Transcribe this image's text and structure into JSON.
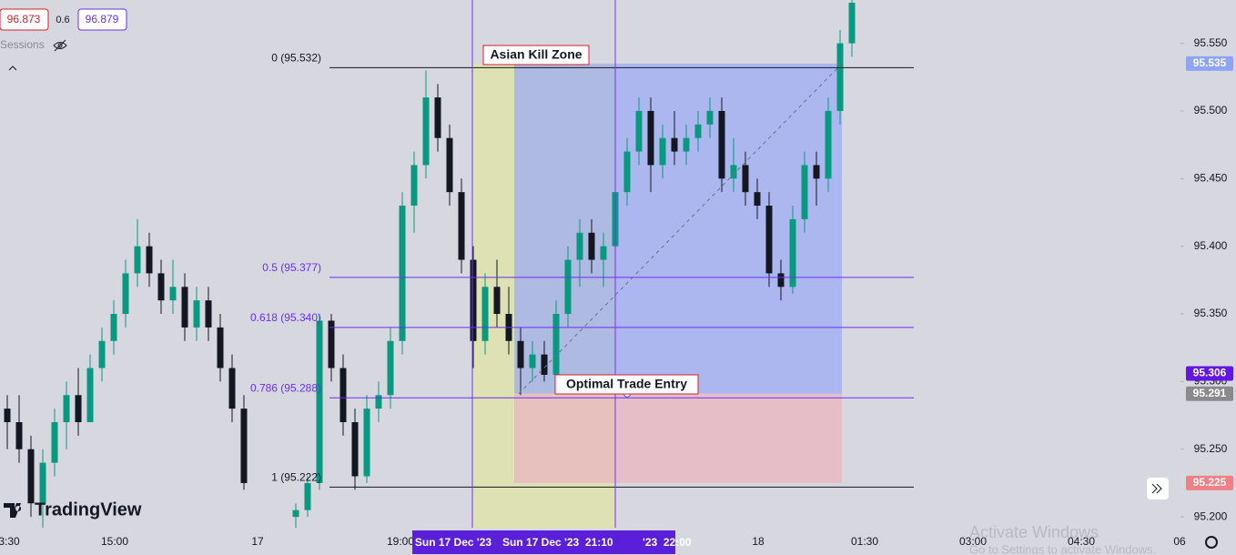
{
  "header": {
    "sell": "96.873",
    "spread": "0.6",
    "buy": "96.879",
    "sessions": "Sessions"
  },
  "chart_data": {
    "type": "candlestick",
    "up_color": "#089981",
    "down_color": "#131722",
    "candles": [
      [
        95.28,
        95.29,
        95.25,
        95.27
      ],
      [
        95.27,
        95.29,
        95.24,
        95.25
      ],
      [
        95.25,
        95.26,
        95.2,
        95.21
      ],
      [
        95.21,
        95.25,
        95.19,
        95.24
      ],
      [
        95.24,
        95.28,
        95.23,
        95.27
      ],
      [
        95.27,
        95.3,
        95.25,
        95.29
      ],
      [
        95.29,
        95.31,
        95.26,
        95.27
      ],
      [
        95.27,
        95.32,
        95.27,
        95.31
      ],
      [
        95.31,
        95.34,
        95.3,
        95.33
      ],
      [
        95.33,
        95.36,
        95.32,
        95.35
      ],
      [
        95.35,
        95.39,
        95.34,
        95.38
      ],
      [
        95.38,
        95.42,
        95.37,
        95.4
      ],
      [
        95.4,
        95.41,
        95.37,
        95.38
      ],
      [
        95.38,
        95.39,
        95.35,
        95.36
      ],
      [
        95.36,
        95.39,
        95.35,
        95.37
      ],
      [
        95.37,
        95.38,
        95.33,
        95.34
      ],
      [
        95.34,
        95.37,
        95.33,
        95.36
      ],
      [
        95.36,
        95.37,
        95.33,
        95.34
      ],
      [
        95.34,
        95.35,
        95.3,
        95.31
      ],
      [
        95.31,
        95.32,
        95.27,
        95.28
      ],
      [
        95.28,
        95.29,
        95.22,
        95.225
      ],
      [
        95.2,
        95.21,
        95.19,
        95.205
      ],
      [
        95.205,
        95.23,
        95.2,
        95.225
      ],
      [
        95.225,
        95.35,
        95.22,
        95.345
      ],
      [
        95.345,
        95.35,
        95.3,
        95.31
      ],
      [
        95.31,
        95.32,
        95.26,
        95.27
      ],
      [
        95.27,
        95.28,
        95.22,
        95.23
      ],
      [
        95.23,
        95.29,
        95.225,
        95.28
      ],
      [
        95.28,
        95.3,
        95.27,
        95.29
      ],
      [
        95.29,
        95.34,
        95.28,
        95.33
      ],
      [
        95.33,
        95.44,
        95.32,
        95.43
      ],
      [
        95.43,
        95.47,
        95.41,
        95.46
      ],
      [
        95.46,
        95.53,
        95.45,
        95.51
      ],
      [
        95.51,
        95.52,
        95.47,
        95.48
      ],
      [
        95.48,
        95.49,
        95.43,
        95.44
      ],
      [
        95.44,
        95.45,
        95.38,
        95.39
      ],
      [
        95.39,
        95.4,
        95.31,
        95.33
      ],
      [
        95.33,
        95.38,
        95.32,
        95.37
      ],
      [
        95.37,
        95.39,
        95.34,
        95.35
      ],
      [
        95.35,
        95.37,
        95.32,
        95.33
      ],
      [
        95.33,
        95.34,
        95.29,
        95.31
      ],
      [
        95.31,
        95.33,
        95.3,
        95.32
      ],
      [
        95.32,
        95.33,
        95.3,
        95.305
      ],
      [
        95.305,
        95.36,
        95.3,
        95.35
      ],
      [
        95.35,
        95.4,
        95.34,
        95.39
      ],
      [
        95.39,
        95.42,
        95.37,
        95.41
      ],
      [
        95.41,
        95.42,
        95.38,
        95.39
      ],
      [
        95.39,
        95.41,
        95.37,
        95.4
      ],
      [
        95.4,
        95.45,
        95.39,
        95.44
      ],
      [
        95.44,
        95.48,
        95.43,
        95.47
      ],
      [
        95.47,
        95.51,
        95.46,
        95.5
      ],
      [
        95.5,
        95.51,
        95.44,
        95.46
      ],
      [
        95.46,
        95.49,
        95.45,
        95.48
      ],
      [
        95.48,
        95.5,
        95.46,
        95.47
      ],
      [
        95.47,
        95.49,
        95.46,
        95.48
      ],
      [
        95.48,
        95.5,
        95.47,
        95.49
      ],
      [
        95.49,
        95.51,
        95.48,
        95.5
      ],
      [
        95.5,
        95.51,
        95.44,
        95.45
      ],
      [
        95.45,
        95.48,
        95.44,
        95.46
      ],
      [
        95.46,
        95.47,
        95.43,
        95.44
      ],
      [
        95.44,
        95.45,
        95.42,
        95.43
      ],
      [
        95.43,
        95.44,
        95.37,
        95.38
      ],
      [
        95.38,
        95.39,
        95.36,
        95.37
      ],
      [
        95.37,
        95.43,
        95.365,
        95.42
      ],
      [
        95.42,
        95.47,
        95.41,
        95.46
      ],
      [
        95.46,
        95.47,
        95.43,
        95.45
      ],
      [
        95.45,
        95.51,
        95.44,
        95.5
      ],
      [
        95.5,
        95.56,
        95.49,
        95.55
      ],
      [
        95.55,
        95.59,
        95.54,
        95.58
      ]
    ],
    "ylim": [
      95.192,
      95.582
    ],
    "yticks": [
      {
        "value": 95.2,
        "label": "95.200"
      },
      {
        "value": 95.25,
        "label": "95.250"
      },
      {
        "value": 95.3,
        "label": "95.300"
      },
      {
        "value": 95.35,
        "label": "95.350"
      },
      {
        "value": 95.4,
        "label": "95.400"
      },
      {
        "value": 95.45,
        "label": "95.450"
      },
      {
        "value": 95.5,
        "label": "95.500"
      },
      {
        "value": 95.55,
        "label": "95.550"
      }
    ],
    "xticks": [
      "3:30",
      "15:00",
      "17",
      "19:00",
      "18",
      "01:30",
      "03:00",
      "04:30",
      "06"
    ],
    "crosshair_labels": [
      "Sun 17 Dec '23",
      "Sun 17 Dec '23  21:10",
      "'23  22:00"
    ],
    "fib_levels": [
      {
        "label": "0 (95.532)",
        "value": 95.532,
        "color": "#131722"
      },
      {
        "label": "0.5 (95.377)",
        "value": 95.377,
        "color": "#6a2ff0"
      },
      {
        "label": "0.618 (95.340)",
        "value": 95.34,
        "color": "#6a2ff0"
      },
      {
        "label": "0.786 (95.288)",
        "value": 95.288,
        "color": "#6a2ff0"
      },
      {
        "label": "1 (95.222)",
        "value": 95.222,
        "color": "#131722"
      }
    ],
    "price_labels": [
      {
        "value": 95.535,
        "label": "95.535",
        "color": "#8ea4f7"
      },
      {
        "value": 95.306,
        "label": "95.306",
        "color": "#6216e0"
      },
      {
        "value": 95.291,
        "label": "95.291",
        "color": "#8a8a8e"
      },
      {
        "value": 95.225,
        "label": "95.225",
        "color": "#f07f86"
      }
    ],
    "annotations": [
      "Asian Kill Zone",
      "Optimal Trade Entry"
    ]
  },
  "branding": "TradingView",
  "watermark": {
    "title": "Activate Windows",
    "subtitle": "Go to Settings to activate Windows."
  }
}
